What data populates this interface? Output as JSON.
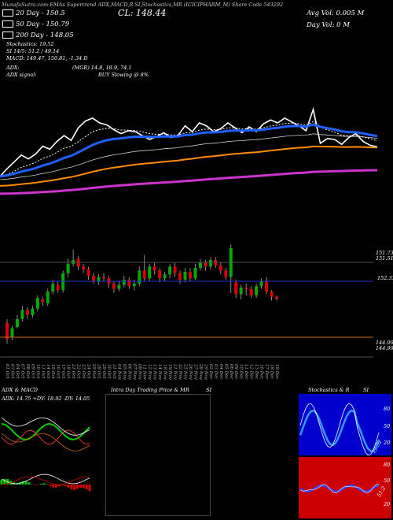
{
  "header": {
    "topline": "MunafaSutra.com EMAs Supertrend ADX,MACD,R SI,Stochastics,MR (ICICIPHARM_M) Share Code 543292",
    "cl_label": "CL: 148.44",
    "avg_vol": "Avg Vol: 0.005  M",
    "day_vol": "Day Vol: 0  M"
  },
  "legend": {
    "items": [
      {
        "label": "20  Day - 150.5",
        "color": "#ffffff"
      },
      {
        "label": "50  Day - 150.79",
        "color": "#ffffff"
      },
      {
        "label": "200  Day - 148.05",
        "color": "#ffffff"
      }
    ],
    "stochastics": "Stochastics: 19.52",
    "rsi": "SI 14/5: 51.2  / 49.14",
    "macd": "MACD: 149.47,  150.81,  -1.34  D",
    "adx": "ADX:",
    "adx_values": "(MGR) 14.8,  18.9,  74.1",
    "adx_signal": "ADX  signal:",
    "signal": "BUY Slowing @ 8%"
  },
  "price_panel": {
    "labels": {
      "top": "151.73",
      "mid": "151.51",
      "ref": "152.33",
      "low1": "144.99",
      "low2": "144.99"
    }
  },
  "dates": [
    "01 Oct",
    "03 Oct",
    "04 Oct",
    "07 Oct",
    "08 Oct",
    "09 Oct",
    "10 Oct",
    "11 Oct",
    "14 Oct",
    "15 Oct",
    "16 Oct",
    "17 Oct",
    "18 Oct",
    "21 Oct",
    "22 Oct",
    "23 Oct",
    "24 Oct",
    "25 Oct",
    "28 Oct",
    "29 Oct",
    "30 Oct",
    "31 Oct",
    "04 Nov",
    "05 Nov",
    "06 Nov",
    "07 Nov",
    "08 Nov",
    "11 Nov",
    "12 Nov",
    "13 Nov",
    "14 Nov",
    "18 Nov",
    "19 Nov",
    "21 Nov",
    "22 Nov",
    "25 Nov",
    "26 Nov",
    "27 Nov",
    "28 Nov",
    "29 Nov",
    "02 Dec",
    "03 Dec",
    "04 Dec",
    "05 Dec",
    "06 Dec",
    "09 Dec",
    "10 Dec",
    "11 Dec",
    "12 Dec",
    "13 Dec",
    "16 Dec",
    "17 Dec",
    "18 Dec",
    "19 Dec"
  ],
  "panels": {
    "adx_macd_title": "ADX  & MACD",
    "adx_line": "ADX: 14.75 +DY: 18.92  -DY: 14.05",
    "mr_title": "Intra  Day Trading Price  & MR",
    "si_title": "SI",
    "stoch_title": "Stochastics & R",
    "stoch_si": "SI",
    "stoch_ticks": [
      "80",
      "50",
      "20"
    ],
    "stoch_last": "19.52",
    "rsi_ticks": [
      "80",
      "50",
      "20"
    ],
    "rsi_last": "51.2"
  },
  "colors": {
    "ema20": "#ffffff",
    "ema50": "#1f5fff",
    "ema200": "#ff8c00",
    "ema_long": "#cc33cc",
    "up": "#00aa00",
    "down": "#dd0000",
    "blue_panel": "#0000cc",
    "red_panel": "#cc0000"
  },
  "chart_data": {
    "type": "line",
    "note_series": "EMA / price lines",
    "series": [
      {
        "name": "20  Day - 150.5",
        "values": []
      },
      {
        "name": "50  Day - 150.79",
        "values": []
      },
      {
        "name": "200  Day - 148.05",
        "values": []
      }
    ],
    "candles": [
      [
        146.6,
        145.4,
        146.9,
        145.0
      ],
      [
        145.5,
        146.2,
        146.4,
        145.3
      ],
      [
        146.3,
        146.9,
        147.2,
        146.2
      ],
      [
        146.9,
        147.6,
        147.9,
        146.7
      ],
      [
        147.6,
        147.2,
        147.8,
        146.9
      ],
      [
        147.2,
        147.7,
        147.9,
        147.0
      ],
      [
        147.7,
        148.5,
        148.7,
        147.5
      ],
      [
        148.4,
        148.2,
        148.6,
        147.9
      ],
      [
        148.1,
        149.0,
        149.2,
        147.9
      ],
      [
        149.0,
        149.6,
        149.9,
        148.8
      ],
      [
        149.5,
        149.1,
        149.8,
        148.9
      ],
      [
        149.1,
        150.4,
        150.6,
        148.9
      ],
      [
        150.4,
        151.1,
        151.5,
        150.1
      ],
      [
        151.1,
        151.4,
        152.2,
        150.9
      ],
      [
        151.5,
        150.9,
        151.7,
        150.6
      ],
      [
        150.9,
        150.7,
        151.1,
        150.4
      ],
      [
        150.7,
        150.2,
        150.9,
        149.9
      ],
      [
        150.2,
        149.8,
        150.4,
        149.6
      ],
      [
        149.8,
        150.1,
        150.3,
        149.5
      ],
      [
        150.1,
        150.0,
        150.4,
        149.8
      ],
      [
        150.0,
        149.6,
        150.2,
        149.3
      ],
      [
        149.6,
        149.2,
        149.8,
        148.9
      ],
      [
        149.2,
        149.5,
        149.8,
        149.0
      ],
      [
        149.5,
        149.9,
        150.2,
        149.3
      ],
      [
        149.9,
        149.4,
        150.1,
        149.2
      ],
      [
        149.4,
        149.6,
        149.9,
        149.1
      ],
      [
        149.6,
        150.6,
        150.9,
        149.4
      ],
      [
        150.6,
        150.0,
        151.8,
        149.8
      ],
      [
        150.0,
        150.9,
        151.1,
        149.8
      ],
      [
        150.9,
        150.6,
        151.2,
        150.3
      ],
      [
        150.6,
        150.0,
        150.8,
        149.7
      ],
      [
        150.0,
        150.3,
        150.5,
        149.8
      ],
      [
        150.3,
        150.9,
        151.1,
        150.0
      ],
      [
        150.9,
        150.4,
        151.2,
        150.1
      ],
      [
        150.4,
        149.9,
        150.6,
        149.6
      ],
      [
        149.9,
        150.5,
        150.8,
        149.7
      ],
      [
        150.5,
        150.0,
        150.8,
        149.8
      ],
      [
        150.0,
        150.8,
        151.1,
        149.9
      ],
      [
        150.8,
        151.2,
        151.5,
        150.6
      ],
      [
        151.2,
        150.9,
        151.4,
        150.6
      ],
      [
        150.9,
        151.4,
        151.6,
        150.7
      ],
      [
        151.4,
        151.0,
        151.6,
        150.8
      ],
      [
        151.0,
        150.6,
        151.2,
        150.3
      ],
      [
        150.6,
        150.1,
        150.8,
        149.9
      ],
      [
        150.1,
        152.3,
        152.6,
        148.9
      ],
      [
        149.7,
        148.8,
        149.9,
        148.5
      ],
      [
        148.8,
        149.3,
        149.5,
        148.4
      ],
      [
        149.3,
        149.2,
        149.6,
        148.7
      ],
      [
        149.2,
        148.7,
        149.4,
        148.5
      ],
      [
        148.7,
        149.4,
        149.6,
        148.5
      ],
      [
        149.4,
        149.8,
        150.0,
        149.2
      ],
      [
        149.8,
        149.0,
        150.1,
        148.8
      ],
      [
        149.0,
        148.6,
        149.1,
        148.3
      ],
      [
        148.6,
        148.44,
        148.7,
        148.3
      ]
    ]
  }
}
